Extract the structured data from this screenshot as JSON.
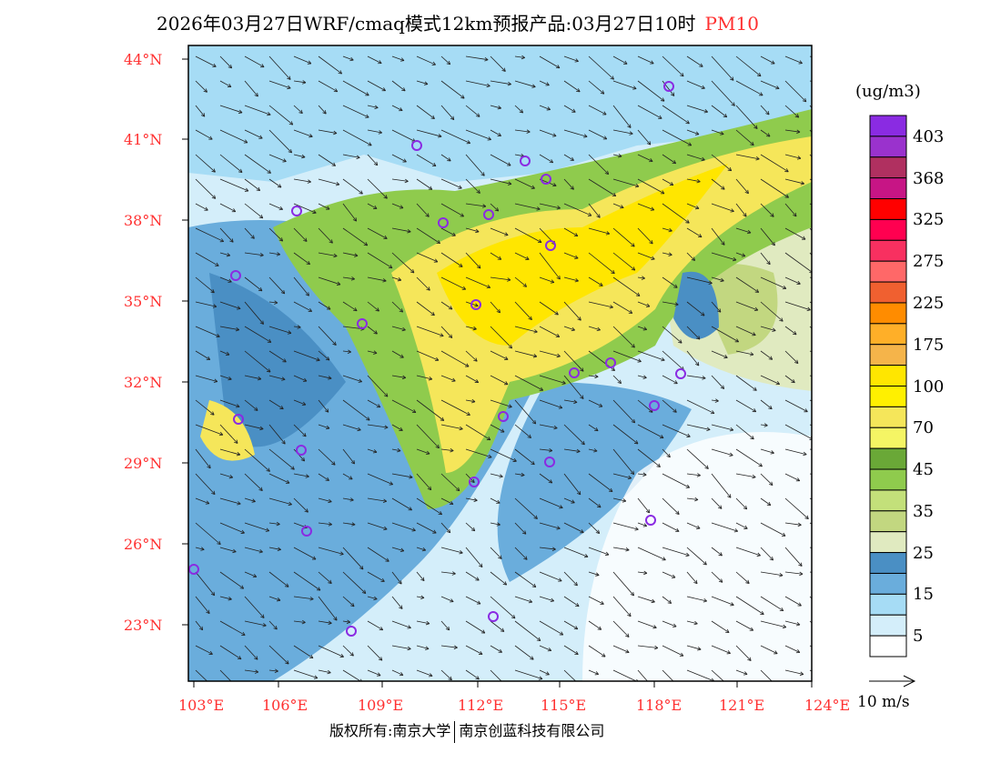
{
  "title": {
    "text": "2026年03月27日WRF/cmaq模式12km预报产品:03月27日10时",
    "pollutant": "PM10"
  },
  "latitude_labels": [
    "44°N",
    "41°N",
    "38°N",
    "35°N",
    "32°N",
    "29°N",
    "26°N",
    "23°N"
  ],
  "longitude_labels": [
    "103°E",
    "106°E",
    "109°E",
    "112°E",
    "115°E",
    "118°E",
    "121°E",
    "124°E"
  ],
  "legend": {
    "unit": "(ug/m3)",
    "labels": [
      "403",
      "368",
      "325",
      "275",
      "225",
      "175",
      "100",
      "70",
      "45",
      "35",
      "25",
      "15",
      "5"
    ],
    "colors": [
      "#8a2be2",
      "#9a32cd",
      "#b03060",
      "#c71585",
      "#ff0000",
      "#ff0050",
      "#f83060",
      "#ff6868",
      "#f06030",
      "#ff8c00",
      "#ffaf28",
      "#f5b44a",
      "#ffe600",
      "#fff000",
      "#f5e65a",
      "#f5f564",
      "#6aa837",
      "#8fcb4d",
      "#c3e07a",
      "#c2d780",
      "#e0eac0",
      "#4a8fc4",
      "#6aaddc",
      "#a6dcf5",
      "#d4eefa",
      "#ffffff"
    ]
  },
  "wind_reference": "10 m/s",
  "footer": {
    "left": "版权所有:南京大学",
    "right": "南京创蓝科技有限公司"
  }
}
